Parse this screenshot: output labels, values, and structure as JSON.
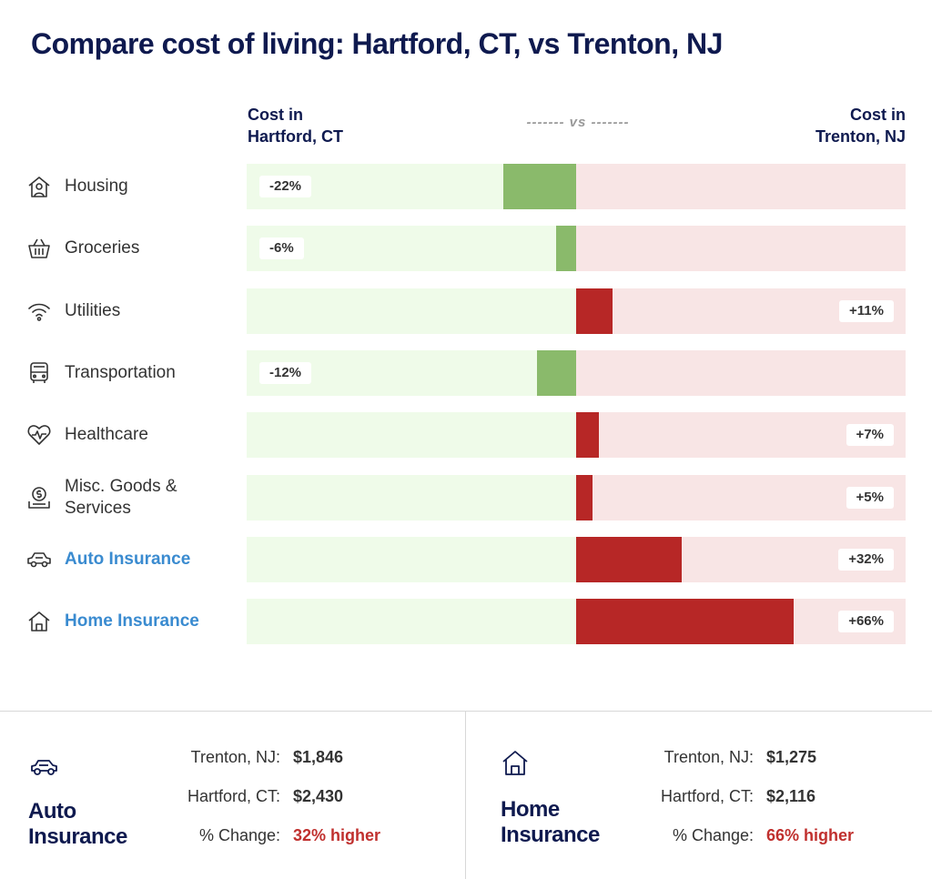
{
  "title": "Compare cost of living: Hartford, CT, vs Trenton, NJ",
  "header": {
    "left_line1": "Cost in",
    "left_line2": "Hartford, CT",
    "vs": "------- vs -------",
    "right_line1": "Cost in",
    "right_line2": "Trenton, NJ"
  },
  "chart_data": {
    "type": "bar",
    "categories": [
      "Housing",
      "Groceries",
      "Utilities",
      "Transportation",
      "Healthcare",
      "Misc. Goods & Services",
      "Auto Insurance",
      "Home Insurance"
    ],
    "values": [
      -22,
      -6,
      11,
      -12,
      7,
      5,
      32,
      66
    ],
    "value_labels": [
      "-22%",
      "-6%",
      "+11%",
      "-12%",
      "+7%",
      "+5%",
      "+32%",
      "+66%"
    ],
    "icons": [
      "house-person-icon",
      "basket-icon",
      "wifi-icon",
      "bus-icon",
      "heart-pulse-icon",
      "money-hand-icon",
      "car-icon",
      "house-icon"
    ],
    "links": [
      false,
      false,
      false,
      false,
      false,
      false,
      true,
      true
    ],
    "xlim": [
      -66,
      66
    ],
    "colors": {
      "negative": "#8aba6b",
      "positive": "#b72726",
      "negative_track": "#effbe9",
      "positive_track": "#f8e5e5"
    }
  },
  "cards": [
    {
      "icon": "car-icon",
      "title_line1": "Auto",
      "title_line2": "Insurance",
      "rows": [
        {
          "label": "Trenton, NJ:",
          "value": "$1,846"
        },
        {
          "label": "Hartford, CT:",
          "value": "$2,430"
        },
        {
          "label": "% Change:",
          "value": "32% higher"
        }
      ]
    },
    {
      "icon": "house-icon",
      "title_line1": "Home",
      "title_line2": "Insurance",
      "rows": [
        {
          "label": "Trenton, NJ:",
          "value": "$1,275"
        },
        {
          "label": "Hartford, CT:",
          "value": "$2,116"
        },
        {
          "label": "% Change:",
          "value": "66% higher"
        }
      ]
    }
  ]
}
